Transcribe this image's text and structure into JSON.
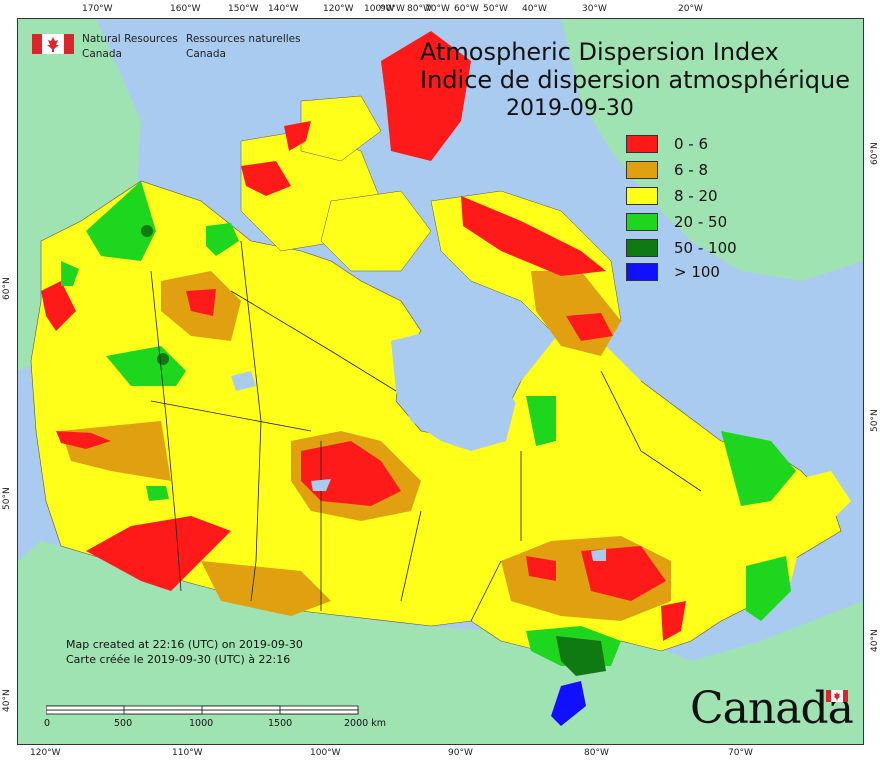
{
  "title": {
    "en": "Atmospheric Dispersion Index",
    "fr": "Indice de dispersion atmosphérique",
    "date": "2019-09-30"
  },
  "agency": {
    "en_line1": "Natural Resources",
    "en_line2": "Canada",
    "fr_line1": "Ressources naturelles",
    "fr_line2": "Canada"
  },
  "legend": [
    {
      "label": "0 - 6",
      "color": "#ff1a1a"
    },
    {
      "label": "6 - 8",
      "color": "#e0a010"
    },
    {
      "label": "8 - 20",
      "color": "#ffff1a"
    },
    {
      "label": "20 - 50",
      "color": "#1ed61e"
    },
    {
      "label": "50 - 100",
      "color": "#0f7a12"
    },
    {
      "label": "> 100",
      "color": "#1010ff"
    }
  ],
  "credit": {
    "en": "Map created at 22:16 (UTC) on 2019-09-30",
    "fr": "Carte créée le 2019-09-30 (UTC) à 22:16"
  },
  "scale_bar": {
    "ticks": [
      "0",
      "500",
      "1000",
      "1500",
      "2000  km"
    ]
  },
  "wordmark": "Canada",
  "graticule": {
    "top": [
      "170°W",
      "160°W",
      "150°W",
      "140°W",
      "120°W",
      "100°W",
      "90°W",
      "80°W",
      "70°W",
      "60°W",
      "50°W",
      "40°W",
      "30°W",
      "20°W"
    ],
    "bottom": [
      "120°W",
      "110°W",
      "100°W",
      "90°W",
      "80°W",
      "70°W"
    ],
    "left": [
      "60°N",
      "50°N",
      "40°N"
    ],
    "right": [
      "60°N",
      "50°N",
      "40°N"
    ]
  },
  "colors": {
    "ocean": "#aacbf0",
    "land_foreign": "#9fe3b3",
    "boundary": "#222222"
  }
}
